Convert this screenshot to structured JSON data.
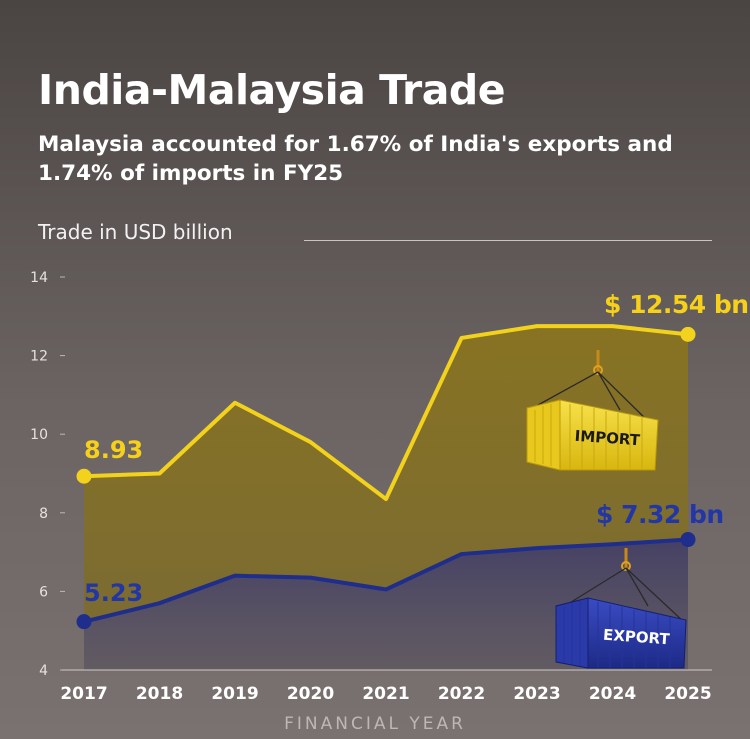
{
  "header": {
    "title": "India-Malaysia Trade",
    "subtitle": "Malaysia accounted for 1.67% of India's exports and 1.74% of imports in FY25",
    "axis_caption": "Trade in USD billion"
  },
  "colors": {
    "import": "#f2d21c",
    "export": "#1f2d8c",
    "import_label": "#f6d01a",
    "export_label": "#2336a6"
  },
  "chart_data": {
    "type": "area",
    "title": "India-Malaysia Trade",
    "xlabel": "FINANCIAL YEAR",
    "ylabel": "Trade in USD billion",
    "categories": [
      "2017",
      "2018",
      "2019",
      "2020",
      "2021",
      "2022",
      "2023",
      "2024",
      "2025"
    ],
    "ylim": [
      4,
      14
    ],
    "yticks": [
      4,
      6,
      8,
      10,
      12,
      14
    ],
    "series": [
      {
        "name": "IMPORT",
        "values": [
          8.93,
          9.0,
          10.8,
          9.8,
          8.35,
          12.45,
          12.75,
          12.75,
          12.54
        ]
      },
      {
        "name": "EXPORT",
        "values": [
          5.23,
          5.7,
          6.4,
          6.35,
          6.05,
          6.95,
          7.1,
          7.2,
          7.32
        ]
      }
    ],
    "annotations": {
      "import_start": "8.93",
      "import_end": "$ 12.54 bn",
      "export_start": "5.23",
      "export_end": "$ 7.32 bn"
    },
    "grid": false
  },
  "containers": {
    "import_label": "IMPORT",
    "export_label": "EXPORT"
  }
}
